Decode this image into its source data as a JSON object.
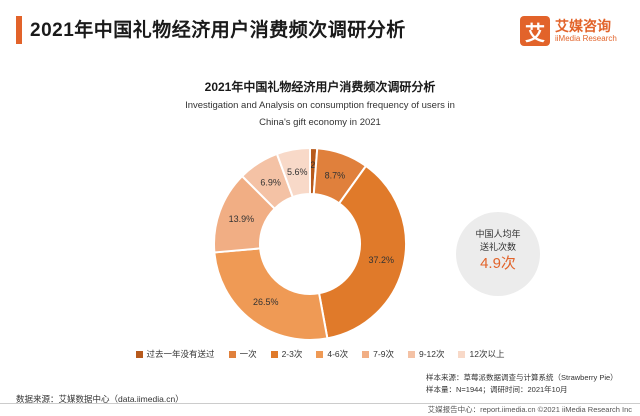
{
  "header": {
    "title": "2021年中国礼物经济用户消费频次调研分析",
    "logo_mark": "艾",
    "logo_cn": "艾媒咨询",
    "logo_en": "iiMedia Research"
  },
  "chart_data": {
    "type": "pie",
    "donut": true,
    "title": "2021年中国礼物经济用户消费频次调研分析",
    "subtitle_en_line1": "Investigation and Analysis on consumption frequency of users in",
    "subtitle_en_line2": "China's gift economy in 2021",
    "categories": [
      "过去一年没有送过",
      "一次",
      "2-3次",
      "4-6次",
      "7-9次",
      "9-12次",
      "12次以上"
    ],
    "values": [
      1.2,
      8.7,
      37.2,
      26.5,
      13.9,
      6.9,
      5.6
    ],
    "labels": [
      "1.2%",
      "8.7%",
      "37.2%",
      "26.5%",
      "13.9%",
      "6.9%",
      "5.6%"
    ],
    "colors": [
      "#b75a1c",
      "#e0803c",
      "#e07a2a",
      "#ef9a55",
      "#f1ae84",
      "#f4c2a5",
      "#f8d9c8"
    ],
    "legend_position": "bottom"
  },
  "callout": {
    "line1": "中国人均年",
    "line2": "送礼次数",
    "value": "4.9次"
  },
  "notes": {
    "sample_source": "样本来源：草莓派数据调查与计算系统（Strawberry Pie）",
    "sample_size": "样本量：N=1944；调研时间：2021年10月"
  },
  "source": "数据来源：艾媒数据中心（data.iimedia.cn）",
  "footer": "艾媒报告中心：report.iimedia.cn  ©2021  iiMedia Research  Inc"
}
